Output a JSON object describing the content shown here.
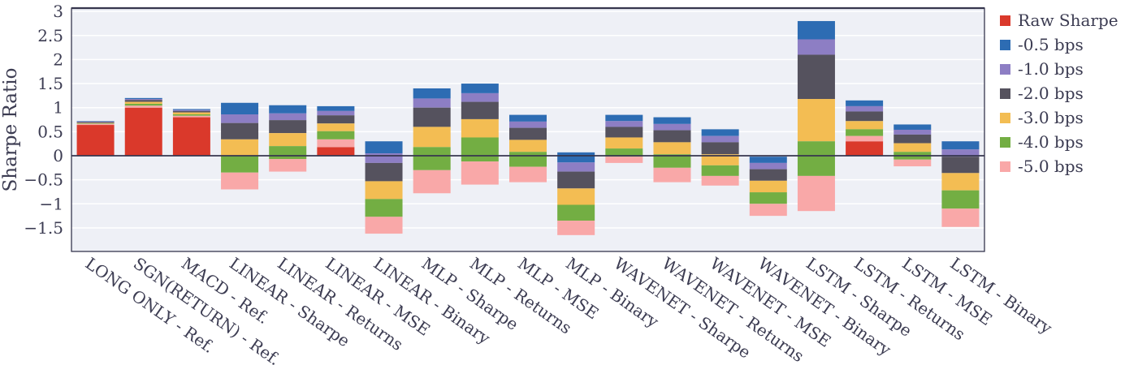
{
  "chart_data": {
    "type": "bar",
    "stacked": true,
    "title": "",
    "ylabel": "Sharpe Ratio",
    "ylim": [
      -2.0,
      3.07
    ],
    "grid": "horizontal",
    "legend_position": "right",
    "yticks": [
      {
        "label": "3",
        "value": 3
      },
      {
        "label": "2.5",
        "value": 2.5
      },
      {
        "label": "2",
        "value": 2
      },
      {
        "label": "1.5",
        "value": 1.5
      },
      {
        "label": "1",
        "value": 1
      },
      {
        "label": "0.5",
        "value": 0.5
      },
      {
        "label": "0",
        "value": 0
      },
      {
        "label": "−0.5",
        "value": -0.5
      },
      {
        "label": "−1",
        "value": -1
      },
      {
        "label": "−1.5",
        "value": -1.5
      }
    ],
    "legend": [
      {
        "label": "Raw Sharpe",
        "color": "#da392b"
      },
      {
        "label": "-0.5 bps",
        "color": "#2d6cb3"
      },
      {
        "label": "-1.0 bps",
        "color": "#8d7ec4"
      },
      {
        "label": "-2.0 bps",
        "color": "#55525e"
      },
      {
        "label": "-3.0 bps",
        "color": "#f3bd53"
      },
      {
        "label": "-4.0 bps",
        "color": "#73ae43"
      },
      {
        "label": "-5.0 bps",
        "color": "#f9a8a8"
      }
    ],
    "cost_levels_bps": [
      "raw",
      -0.5,
      -1.0,
      -2.0,
      -3.0,
      -4.0,
      -5.0
    ],
    "categories": [
      "LONG ONLY - Ref.",
      "SGN(RETURN) - Ref.",
      "MACD - Ref.",
      "LINEAR - Sharpe",
      "LINEAR - Returns",
      "LINEAR - MSE",
      "LINEAR - Binary",
      "MLP - Sharpe",
      "MLP - Returns",
      "MLP - MSE",
      "MLP - Binary",
      "WAVENET - Sharpe",
      "WAVENET - Returns",
      "WAVENET - MSE",
      "WAVENET - Binary",
      "LSTM - Sharpe",
      "LSTM - Returns",
      "LSTM - MSE",
      "LSTM - Binary"
    ],
    "sharpe_by_cost": [
      [
        0.72,
        0.71,
        0.7,
        0.68,
        0.67,
        0.66,
        0.64
      ],
      [
        1.2,
        1.18,
        1.16,
        1.12,
        1.08,
        1.04,
        1.0
      ],
      [
        0.97,
        0.95,
        0.93,
        0.9,
        0.86,
        0.83,
        0.8
      ],
      [
        1.1,
        0.86,
        0.68,
        0.34,
        0.0,
        -0.35,
        -0.7
      ],
      [
        1.05,
        0.88,
        0.74,
        0.47,
        0.2,
        -0.07,
        -0.33
      ],
      [
        1.03,
        0.93,
        0.84,
        0.67,
        0.51,
        0.34,
        0.18
      ],
      [
        0.3,
        0.05,
        -0.15,
        -0.53,
        -0.9,
        -1.27,
        -1.62
      ],
      [
        1.4,
        1.19,
        1.0,
        0.6,
        0.18,
        -0.3,
        -0.78
      ],
      [
        1.5,
        1.3,
        1.12,
        0.76,
        0.38,
        -0.12,
        -0.6
      ],
      [
        0.85,
        0.71,
        0.58,
        0.33,
        0.08,
        -0.23,
        -0.55
      ],
      [
        0.07,
        -0.14,
        -0.33,
        -0.68,
        -1.02,
        -1.35,
        -1.65
      ],
      [
        0.85,
        0.72,
        0.6,
        0.38,
        0.15,
        -0.02,
        -0.15
      ],
      [
        0.8,
        0.66,
        0.53,
        0.28,
        0.03,
        -0.25,
        -0.55
      ],
      [
        0.55,
        0.41,
        0.28,
        0.03,
        -0.2,
        -0.42,
        -0.62
      ],
      [
        -0.02,
        -0.15,
        -0.28,
        -0.52,
        -0.76,
        -1.0,
        -1.25
      ],
      [
        2.8,
        2.42,
        2.1,
        1.18,
        0.3,
        -0.42,
        -1.15
      ],
      [
        1.15,
        1.03,
        0.92,
        0.72,
        0.55,
        0.41,
        0.3
      ],
      [
        0.65,
        0.54,
        0.44,
        0.26,
        0.08,
        -0.08,
        -0.22
      ],
      [
        0.3,
        0.13,
        -0.02,
        -0.36,
        -0.72,
        -1.1,
        -1.48
      ]
    ],
    "style": {
      "plot_background": "#eef0f6",
      "gridline_color": "#ffffff",
      "axis_color": "#36364e",
      "text_color": "#3c3c52"
    }
  }
}
